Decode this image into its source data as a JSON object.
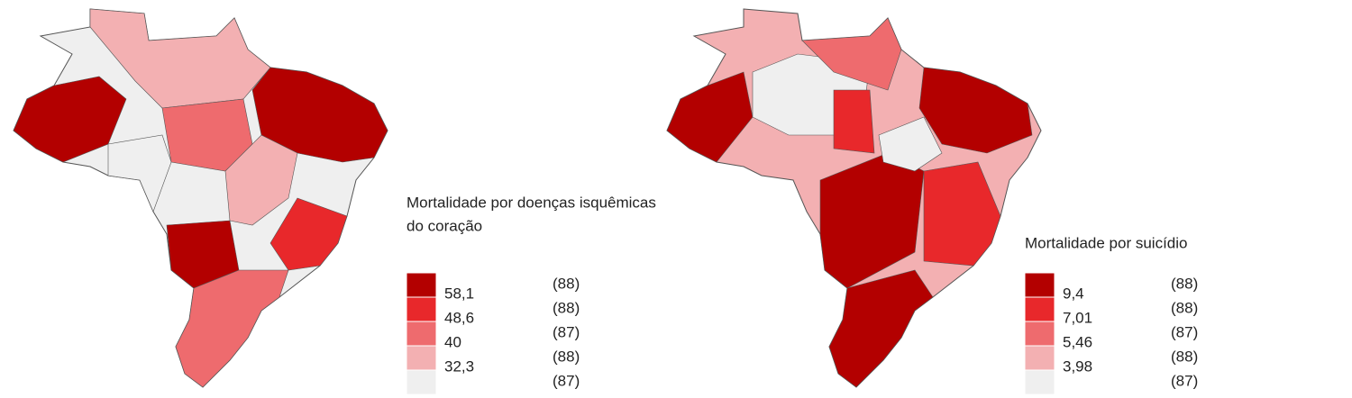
{
  "maps": [
    {
      "legend": {
        "title": [
          "Mortalidade por doenças isquêmicas",
          "do coração"
        ],
        "classes": [
          {
            "label": "58,1",
            "count": "(88)",
            "color": "#b30000"
          },
          {
            "label": "48,6",
            "count": "(88)",
            "color": "#e8282b"
          },
          {
            "label": "40",
            "count": "(87)",
            "color": "#ee6b6e"
          },
          {
            "label": "32,3",
            "count": "(88)",
            "color": "#f3b0b2"
          },
          {
            "count": "(87)",
            "color": "#efefef"
          }
        ]
      }
    },
    {
      "legend": {
        "title": [
          "Mortalidade por suicídio"
        ],
        "classes": [
          {
            "label": "9,4",
            "count": "(88)",
            "color": "#b30000"
          },
          {
            "label": "7,01",
            "count": "(88)",
            "color": "#e8282b"
          },
          {
            "label": "5,46",
            "count": "(87)",
            "color": "#ee6b6e"
          },
          {
            "label": "3,98",
            "count": "(88)",
            "color": "#f3b0b2"
          },
          {
            "count": "(87)",
            "color": "#efefef"
          }
        ]
      }
    }
  ]
}
